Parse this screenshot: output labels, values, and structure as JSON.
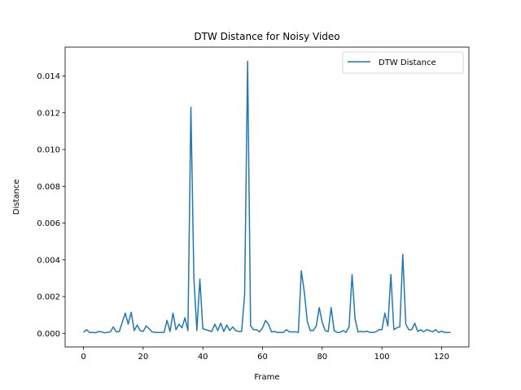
{
  "chart_data": {
    "type": "line",
    "title": "DTW Distance for Noisy Video",
    "xlabel": "Frame",
    "ylabel": "Distance",
    "xlim": [
      -6.15,
      129.15
    ],
    "ylim": [
      -0.00074,
      0.01557
    ],
    "xticks": [
      0,
      20,
      40,
      60,
      80,
      100,
      120
    ],
    "xtick_labels": [
      "0",
      "20",
      "40",
      "60",
      "80",
      "100",
      "120"
    ],
    "yticks": [
      0.0,
      0.002,
      0.004,
      0.006,
      0.008,
      0.01,
      0.012,
      0.014
    ],
    "ytick_labels": [
      "0.000",
      "0.002",
      "0.004",
      "0.006",
      "0.008",
      "0.010",
      "0.012",
      "0.014"
    ],
    "grid": false,
    "legend": {
      "position": "top-right",
      "entries": [
        "DTW Distance"
      ]
    },
    "colors": {
      "series": "#1f77b4"
    },
    "series": [
      {
        "name": "DTW Distance",
        "x": [
          0,
          1,
          2,
          3,
          4,
          5,
          6,
          7,
          8,
          9,
          10,
          11,
          12,
          13,
          14,
          15,
          16,
          17,
          18,
          19,
          20,
          21,
          22,
          23,
          24,
          25,
          26,
          27,
          28,
          29,
          30,
          31,
          32,
          33,
          34,
          35,
          36,
          37,
          38,
          39,
          40,
          41,
          42,
          43,
          44,
          45,
          46,
          47,
          48,
          49,
          50,
          51,
          52,
          53,
          54,
          55,
          56,
          57,
          58,
          59,
          60,
          61,
          62,
          63,
          64,
          65,
          66,
          67,
          68,
          69,
          70,
          71,
          72,
          73,
          74,
          75,
          76,
          77,
          78,
          79,
          80,
          81,
          82,
          83,
          84,
          85,
          86,
          87,
          88,
          89,
          90,
          91,
          92,
          93,
          94,
          95,
          96,
          97,
          98,
          99,
          100,
          101,
          102,
          103,
          104,
          105,
          106,
          107,
          108,
          109,
          110,
          111,
          112,
          113,
          114,
          115,
          116,
          117,
          118,
          119,
          120,
          121,
          122,
          123
        ],
        "values": [
          5e-05,
          0.0002,
          5e-05,
          5e-05,
          3e-05,
          0.0001,
          8e-05,
          3e-05,
          5e-05,
          8e-05,
          0.00035,
          8e-05,
          0.0001,
          0.0006,
          0.0011,
          0.0005,
          0.00115,
          0.00015,
          0.00045,
          0.00015,
          0.0001,
          0.0004,
          0.00025,
          8e-05,
          5e-05,
          5e-05,
          5e-05,
          5e-05,
          0.0007,
          0.0001,
          0.0011,
          0.0002,
          0.0005,
          0.0003,
          0.00085,
          0.00015,
          0.0123,
          0.003,
          0.00015,
          0.00295,
          0.00025,
          0.0002,
          0.00015,
          0.0001,
          0.0005,
          0.00015,
          0.00055,
          0.0001,
          0.00045,
          0.00015,
          0.00035,
          0.00015,
          0.0001,
          0.0001,
          0.0021,
          0.0148,
          0.0004,
          0.0002,
          0.0002,
          8e-05,
          0.0003,
          0.0007,
          0.0005,
          8e-05,
          0.0001,
          5e-05,
          5e-05,
          5e-05,
          0.0002,
          8e-05,
          8e-05,
          8e-05,
          5e-05,
          0.0034,
          0.00225,
          0.00065,
          0.00015,
          0.00015,
          0.0004,
          0.0014,
          0.0006,
          0.00015,
          0.0001,
          0.0014,
          0.00015,
          5e-05,
          5e-05,
          0.00015,
          5e-05,
          0.00035,
          0.0032,
          0.0008,
          8e-05,
          0.0001,
          8e-05,
          0.00012,
          5e-05,
          5e-05,
          8e-05,
          0.0002,
          0.0002,
          0.0011,
          0.0004,
          0.0032,
          0.0002,
          0.0003,
          0.00035,
          0.0043,
          0.0005,
          0.0002,
          0.0002,
          0.00055,
          0.0001,
          0.0002,
          8e-05,
          0.0002,
          0.00015,
          8e-05,
          0.0002,
          5e-05,
          0.00012,
          5e-05,
          5e-05,
          5e-05
        ]
      }
    ]
  }
}
